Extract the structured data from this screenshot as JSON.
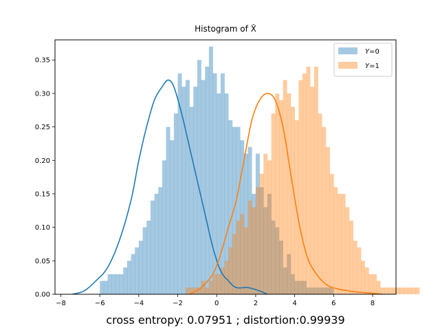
{
  "chart_data": {
    "type": "histogram",
    "title": "Histogram of X̂",
    "caption": "cross entropy: 0.07951 ; distortion:0.99939",
    "xlabel": "",
    "ylabel": "",
    "xlim": [
      -8.3,
      9.2
    ],
    "ylim": [
      0,
      0.38
    ],
    "xticks": [
      -8,
      -6,
      -4,
      -2,
      0,
      2,
      4,
      6,
      8
    ],
    "xtick_labels": [
      "−8",
      "−6",
      "−4",
      "−2",
      "0",
      "2",
      "4",
      "6",
      "8"
    ],
    "yticks": [
      0.0,
      0.05,
      0.1,
      0.15,
      0.2,
      0.25,
      0.3,
      0.35
    ],
    "ytick_labels": [
      "0.00",
      "0.05",
      "0.10",
      "0.15",
      "0.20",
      "0.25",
      "0.30",
      "0.35"
    ],
    "grid": false,
    "legend_position": "top-right",
    "bin_width": 0.2,
    "series": [
      {
        "name": "Y=0",
        "label_var": "Y",
        "label_val": "=0",
        "fill_color": "#1f77b4",
        "line_color": "#1f77b4",
        "bin_start": -6.0,
        "density": [
          0.02,
          0.02,
          0.03,
          0.03,
          0.03,
          0.03,
          0.04,
          0.05,
          0.06,
          0.07,
          0.08,
          0.1,
          0.11,
          0.14,
          0.15,
          0.16,
          0.2,
          0.25,
          0.23,
          0.27,
          0.33,
          0.31,
          0.32,
          0.28,
          0.31,
          0.35,
          0.32,
          0.34,
          0.37,
          0.33,
          0.3,
          0.33,
          0.3,
          0.26,
          0.25,
          0.25,
          0.23,
          0.21,
          0.22,
          0.15,
          0.21,
          0.16,
          0.13,
          0.15,
          0.11,
          0.1,
          0.08,
          0.04,
          0.06,
          0.03,
          0.02,
          0.02,
          0.02,
          0.01,
          0.01,
          0.01,
          0.01,
          0.01,
          0.01,
          0.01
        ],
        "kde_x": [
          -7.4,
          -6.8,
          -6.2,
          -5.6,
          -5.0,
          -4.4,
          -4.0,
          -3.6,
          -3.2,
          -2.8,
          -2.5,
          -2.2,
          -1.8,
          -1.4,
          -1.0,
          -0.6,
          -0.2,
          0.2,
          0.6,
          1.0,
          1.6,
          2.2,
          2.6
        ],
        "kde_y": [
          0.0,
          0.005,
          0.02,
          0.04,
          0.08,
          0.14,
          0.2,
          0.25,
          0.29,
          0.31,
          0.32,
          0.31,
          0.27,
          0.22,
          0.17,
          0.12,
          0.07,
          0.035,
          0.02,
          0.01,
          0.01,
          0.005,
          0.0
        ]
      },
      {
        "name": "Y=1",
        "label_var": "Y",
        "label_val": "=1",
        "fill_color": "#ff7f0e",
        "line_color": "#ff7f0e",
        "bin_start": -1.6,
        "density": [
          0.01,
          0.01,
          0.01,
          0.01,
          0.02,
          0.01,
          0.02,
          0.03,
          0.03,
          0.04,
          0.05,
          0.07,
          0.09,
          0.11,
          0.12,
          0.1,
          0.14,
          0.13,
          0.16,
          0.18,
          0.21,
          0.2,
          0.27,
          0.3,
          0.29,
          0.32,
          0.3,
          0.28,
          0.26,
          0.32,
          0.33,
          0.34,
          0.31,
          0.34,
          0.27,
          0.25,
          0.22,
          0.18,
          0.16,
          0.15,
          0.15,
          0.13,
          0.11,
          0.08,
          0.07,
          0.05,
          0.04,
          0.03,
          0.03,
          0.02,
          0.01,
          0.01,
          0.01,
          0.01,
          0.01,
          0.01,
          0.01,
          0.01,
          0.01,
          0.01
        ],
        "kde_x": [
          -1.4,
          -0.8,
          -0.2,
          0.2,
          0.6,
          1.0,
          1.4,
          1.8,
          2.2,
          2.6,
          3.0,
          3.4,
          3.8,
          4.2,
          4.6,
          5.0,
          5.6,
          6.2,
          7.0,
          7.8,
          8.5
        ],
        "kde_y": [
          0.0,
          0.01,
          0.03,
          0.06,
          0.1,
          0.14,
          0.2,
          0.26,
          0.29,
          0.3,
          0.29,
          0.25,
          0.18,
          0.11,
          0.06,
          0.035,
          0.015,
          0.008,
          0.004,
          0.002,
          0.0
        ]
      }
    ]
  }
}
